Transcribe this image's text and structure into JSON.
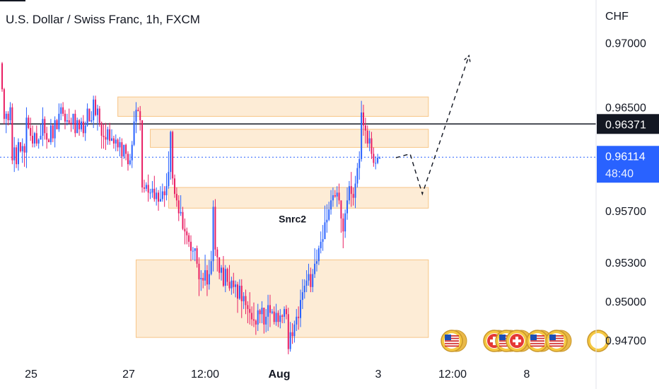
{
  "header": {
    "title": "U.S. Dollar / Swiss Franc, 1h, FXCM"
  },
  "chart_data": {
    "type": "candlestick",
    "currency": "CHF",
    "y_ticks": [
      "0.97000",
      "0.96500",
      "0.95700",
      "0.95300",
      "0.95000",
      "0.94700"
    ],
    "y_tick_values": [
      0.97,
      0.965,
      0.957,
      0.953,
      0.95,
      0.947
    ],
    "x_ticks": [
      "25",
      "27",
      "12:00",
      "Aug",
      "3",
      "12:00",
      "8"
    ],
    "ylim": [
      0.9454,
      0.9733
    ],
    "candle_count": 210,
    "candles": [
      [
        0.9684,
        0.9664,
        0.9685,
        0.9662
      ],
      [
        0.9664,
        0.9641,
        0.9665,
        0.9637
      ],
      [
        0.9641,
        0.9645,
        0.9647,
        0.963
      ],
      [
        0.9645,
        0.964,
        0.9647,
        0.9636
      ],
      [
        0.964,
        0.965,
        0.9654,
        0.9637
      ],
      [
        0.965,
        0.9609,
        0.9653,
        0.9606
      ],
      [
        0.9609,
        0.9619,
        0.9627,
        0.96
      ],
      [
        0.9619,
        0.9606,
        0.9621,
        0.9603
      ],
      [
        0.9606,
        0.9623,
        0.9626,
        0.9601
      ],
      [
        0.9623,
        0.9616,
        0.9623,
        0.9615
      ],
      [
        0.9616,
        0.962,
        0.9626,
        0.9607
      ],
      [
        0.962,
        0.9615,
        0.9622,
        0.9604
      ],
      [
        0.9615,
        0.9642,
        0.965,
        0.9603
      ],
      [
        0.9642,
        0.9634,
        0.9644,
        0.9633
      ],
      [
        0.9634,
        0.9628,
        0.9642,
        0.9624
      ],
      [
        0.9628,
        0.9622,
        0.9636,
        0.9619
      ],
      [
        0.9622,
        0.963,
        0.9631,
        0.9619
      ],
      [
        0.963,
        0.9622,
        0.9636,
        0.962
      ],
      [
        0.9622,
        0.9625,
        0.9626,
        0.9618
      ],
      [
        0.9625,
        0.9628,
        0.9637,
        0.9625
      ],
      [
        0.9628,
        0.9641,
        0.965,
        0.962
      ],
      [
        0.9641,
        0.963,
        0.9643,
        0.9625
      ],
      [
        0.963,
        0.9625,
        0.9635,
        0.9618
      ],
      [
        0.9625,
        0.9623,
        0.9626,
        0.9623
      ],
      [
        0.9623,
        0.9636,
        0.9641,
        0.9621
      ],
      [
        0.9636,
        0.9626,
        0.9637,
        0.9623
      ],
      [
        0.9626,
        0.964,
        0.9643,
        0.9619
      ],
      [
        0.964,
        0.9633,
        0.9641,
        0.9633
      ],
      [
        0.9633,
        0.9645,
        0.9653,
        0.9631
      ],
      [
        0.9645,
        0.965,
        0.9653,
        0.964
      ],
      [
        0.965,
        0.9645,
        0.9654,
        0.9643
      ],
      [
        0.9645,
        0.9639,
        0.9648,
        0.9633
      ],
      [
        0.9639,
        0.964,
        0.9645,
        0.9636
      ],
      [
        0.964,
        0.9638,
        0.9649,
        0.9637
      ],
      [
        0.9638,
        0.9637,
        0.9642,
        0.9631
      ],
      [
        0.9637,
        0.9645,
        0.9645,
        0.9633
      ],
      [
        0.9645,
        0.963,
        0.9648,
        0.9627
      ],
      [
        0.963,
        0.964,
        0.9642,
        0.963
      ],
      [
        0.964,
        0.9633,
        0.9641,
        0.9628
      ],
      [
        0.9633,
        0.9639,
        0.9642,
        0.9631
      ],
      [
        0.9639,
        0.963,
        0.9644,
        0.9627
      ],
      [
        0.963,
        0.9636,
        0.9639,
        0.9624
      ],
      [
        0.9636,
        0.9649,
        0.9653,
        0.9635
      ],
      [
        0.9649,
        0.9639,
        0.9649,
        0.9639
      ],
      [
        0.9639,
        0.964,
        0.9647,
        0.9638
      ],
      [
        0.964,
        0.9656,
        0.9659,
        0.9634
      ],
      [
        0.9656,
        0.9644,
        0.9659,
        0.9643
      ],
      [
        0.9644,
        0.9649,
        0.9652,
        0.9632
      ],
      [
        0.9649,
        0.9638,
        0.9651,
        0.9635
      ],
      [
        0.9638,
        0.9628,
        0.9639,
        0.9618
      ],
      [
        0.9628,
        0.9627,
        0.9637,
        0.9618
      ],
      [
        0.9627,
        0.9625,
        0.9638,
        0.9617
      ],
      [
        0.9625,
        0.9633,
        0.9635,
        0.9621
      ],
      [
        0.9633,
        0.9624,
        0.9638,
        0.9621
      ],
      [
        0.9624,
        0.9626,
        0.9633,
        0.9625
      ],
      [
        0.9626,
        0.9622,
        0.9628,
        0.9618
      ],
      [
        0.9622,
        0.9625,
        0.9629,
        0.9616
      ],
      [
        0.9625,
        0.9619,
        0.9626,
        0.9616
      ],
      [
        0.9619,
        0.9623,
        0.9627,
        0.9612
      ],
      [
        0.9623,
        0.9612,
        0.9626,
        0.9604
      ],
      [
        0.9612,
        0.9621,
        0.9621,
        0.961
      ],
      [
        0.9621,
        0.9614,
        0.9622,
        0.9609
      ],
      [
        0.9614,
        0.9606,
        0.9616,
        0.9601
      ],
      [
        0.9606,
        0.9609,
        0.9614,
        0.9605
      ],
      [
        0.9609,
        0.9621,
        0.9624,
        0.9603
      ],
      [
        0.9621,
        0.9639,
        0.9647,
        0.962
      ],
      [
        0.9639,
        0.9648,
        0.9654,
        0.963
      ],
      [
        0.9648,
        0.9647,
        0.965,
        0.9647
      ],
      [
        0.9647,
        0.964,
        0.9651,
        0.9632
      ],
      [
        0.964,
        0.9588,
        0.964,
        0.9584
      ],
      [
        0.9588,
        0.9587,
        0.9594,
        0.9584
      ],
      [
        0.9587,
        0.959,
        0.9592,
        0.9585
      ],
      [
        0.959,
        0.9584,
        0.9598,
        0.9577
      ],
      [
        0.9584,
        0.9584,
        0.9587,
        0.9579
      ],
      [
        0.9584,
        0.9587,
        0.9593,
        0.958
      ],
      [
        0.9587,
        0.9579,
        0.9597,
        0.9577
      ],
      [
        0.9579,
        0.9584,
        0.9588,
        0.9574
      ],
      [
        0.9584,
        0.9577,
        0.9586,
        0.957
      ],
      [
        0.9577,
        0.9579,
        0.9589,
        0.9578
      ],
      [
        0.9579,
        0.9585,
        0.9591,
        0.9577
      ],
      [
        0.9585,
        0.9582,
        0.9589,
        0.9573
      ],
      [
        0.9582,
        0.9589,
        0.9599,
        0.9578
      ],
      [
        0.9589,
        0.96,
        0.9616,
        0.9587
      ],
      [
        0.96,
        0.9631,
        0.9632,
        0.9594
      ],
      [
        0.9631,
        0.9595,
        0.9632,
        0.959
      ],
      [
        0.9595,
        0.9583,
        0.9598,
        0.958
      ],
      [
        0.9583,
        0.9578,
        0.9588,
        0.9573
      ],
      [
        0.9578,
        0.9568,
        0.9582,
        0.9562
      ],
      [
        0.9568,
        0.9569,
        0.9582,
        0.9566
      ],
      [
        0.9569,
        0.9556,
        0.9573,
        0.9555
      ],
      [
        0.9556,
        0.9554,
        0.9564,
        0.9544
      ],
      [
        0.9554,
        0.9551,
        0.9557,
        0.9544
      ],
      [
        0.9551,
        0.9546,
        0.9553,
        0.9542
      ],
      [
        0.9546,
        0.9539,
        0.9551,
        0.9531
      ],
      [
        0.9539,
        0.9539,
        0.9542,
        0.9532
      ],
      [
        0.9539,
        0.9541,
        0.9541,
        0.9531
      ],
      [
        0.9541,
        0.9529,
        0.9543,
        0.9526
      ],
      [
        0.9529,
        0.9517,
        0.9534,
        0.9504
      ],
      [
        0.9517,
        0.9518,
        0.9524,
        0.9508
      ],
      [
        0.9518,
        0.9516,
        0.9522,
        0.951
      ],
      [
        0.9516,
        0.9524,
        0.9536,
        0.9512
      ],
      [
        0.9524,
        0.9513,
        0.9528,
        0.9504
      ],
      [
        0.9513,
        0.9521,
        0.9532,
        0.9509
      ],
      [
        0.9521,
        0.9531,
        0.9539,
        0.952
      ],
      [
        0.9531,
        0.9573,
        0.9578,
        0.9523
      ],
      [
        0.9573,
        0.954,
        0.9579,
        0.9535
      ],
      [
        0.954,
        0.9534,
        0.9542,
        0.9523
      ],
      [
        0.9534,
        0.9522,
        0.9534,
        0.9517
      ],
      [
        0.9522,
        0.9526,
        0.9528,
        0.9516
      ],
      [
        0.9526,
        0.9512,
        0.9535,
        0.9511
      ],
      [
        0.9512,
        0.9525,
        0.9528,
        0.9507
      ],
      [
        0.9525,
        0.9515,
        0.9526,
        0.9512
      ],
      [
        0.9515,
        0.951,
        0.9528,
        0.9508
      ],
      [
        0.951,
        0.9516,
        0.9519,
        0.9505
      ],
      [
        0.9516,
        0.9511,
        0.9522,
        0.9506
      ],
      [
        0.9511,
        0.9513,
        0.9516,
        0.9503
      ],
      [
        0.9513,
        0.9502,
        0.9515,
        0.9491
      ],
      [
        0.9502,
        0.9512,
        0.9517,
        0.9501
      ],
      [
        0.9512,
        0.95,
        0.9517,
        0.9487
      ],
      [
        0.95,
        0.9504,
        0.9507,
        0.9494
      ],
      [
        0.9504,
        0.9497,
        0.9509,
        0.949
      ],
      [
        0.9497,
        0.9494,
        0.95,
        0.9483
      ],
      [
        0.9494,
        0.9491,
        0.9507,
        0.9482
      ],
      [
        0.9491,
        0.9486,
        0.9496,
        0.9481
      ],
      [
        0.9486,
        0.9485,
        0.9499,
        0.948
      ],
      [
        0.9485,
        0.9482,
        0.9486,
        0.9474
      ],
      [
        0.9482,
        0.9493,
        0.9498,
        0.9477
      ],
      [
        0.9493,
        0.949,
        0.9494,
        0.9483
      ],
      [
        0.949,
        0.9495,
        0.95,
        0.9483
      ],
      [
        0.9495,
        0.9482,
        0.9495,
        0.9475
      ],
      [
        0.9482,
        0.9488,
        0.9494,
        0.9476
      ],
      [
        0.9488,
        0.9497,
        0.9505,
        0.9477
      ],
      [
        0.9497,
        0.9491,
        0.9505,
        0.948
      ],
      [
        0.9491,
        0.9492,
        0.9494,
        0.949
      ],
      [
        0.9492,
        0.9484,
        0.9496,
        0.9482
      ],
      [
        0.9484,
        0.9491,
        0.9498,
        0.9481
      ],
      [
        0.9491,
        0.9484,
        0.9493,
        0.948
      ],
      [
        0.9484,
        0.9489,
        0.9494,
        0.9479
      ],
      [
        0.9489,
        0.9488,
        0.949,
        0.9483
      ],
      [
        0.9488,
        0.9494,
        0.9496,
        0.9483
      ],
      [
        0.9494,
        0.949,
        0.9497,
        0.9486
      ],
      [
        0.949,
        0.9463,
        0.9495,
        0.9459
      ],
      [
        0.9463,
        0.9476,
        0.9484,
        0.9461
      ],
      [
        0.9476,
        0.9473,
        0.9483,
        0.9467
      ],
      [
        0.9473,
        0.9482,
        0.9485,
        0.9468
      ],
      [
        0.9482,
        0.9488,
        0.9494,
        0.9477
      ],
      [
        0.9488,
        0.9487,
        0.9496,
        0.9478
      ],
      [
        0.9487,
        0.9501,
        0.9509,
        0.948
      ],
      [
        0.9501,
        0.9507,
        0.9517,
        0.9494
      ],
      [
        0.9507,
        0.9512,
        0.9517,
        0.9502
      ],
      [
        0.9512,
        0.9516,
        0.9524,
        0.9507
      ],
      [
        0.9516,
        0.9521,
        0.9529,
        0.9512
      ],
      [
        0.9521,
        0.9511,
        0.9526,
        0.9507
      ],
      [
        0.9511,
        0.9521,
        0.9525,
        0.9507
      ],
      [
        0.9521,
        0.9529,
        0.9541,
        0.9518
      ],
      [
        0.9529,
        0.9531,
        0.954,
        0.9523
      ],
      [
        0.9531,
        0.9541,
        0.9543,
        0.9528
      ],
      [
        0.9541,
        0.9546,
        0.9554,
        0.9537
      ],
      [
        0.9546,
        0.9548,
        0.9559,
        0.9539
      ],
      [
        0.9548,
        0.9561,
        0.9574,
        0.9556
      ],
      [
        0.9561,
        0.9563,
        0.9575,
        0.9553
      ],
      [
        0.9563,
        0.9571,
        0.9577,
        0.9562
      ],
      [
        0.9571,
        0.9578,
        0.9586,
        0.9567
      ],
      [
        0.9578,
        0.9582,
        0.9588,
        0.9573
      ],
      [
        0.9582,
        0.9581,
        0.9586,
        0.958
      ],
      [
        0.9581,
        0.9584,
        0.9589,
        0.9573
      ],
      [
        0.9584,
        0.9578,
        0.9591,
        0.9575
      ],
      [
        0.9578,
        0.9564,
        0.9578,
        0.9553
      ],
      [
        0.9564,
        0.9554,
        0.9568,
        0.9541
      ],
      [
        0.9554,
        0.9568,
        0.9571,
        0.9549
      ],
      [
        0.9568,
        0.9578,
        0.9588,
        0.9563
      ],
      [
        0.9578,
        0.9589,
        0.9593,
        0.9575
      ],
      [
        0.9589,
        0.9583,
        0.96,
        0.9573
      ],
      [
        0.9583,
        0.958,
        0.9588,
        0.9574
      ],
      [
        0.958,
        0.9591,
        0.9597,
        0.9572
      ],
      [
        0.9591,
        0.9603,
        0.9607,
        0.9588
      ],
      [
        0.9603,
        0.961,
        0.9616,
        0.9594
      ],
      [
        0.961,
        0.9646,
        0.9655,
        0.9608
      ],
      [
        0.9646,
        0.9636,
        0.9652,
        0.9628
      ],
      [
        0.9636,
        0.9632,
        0.9642,
        0.9622
      ],
      [
        0.9632,
        0.9622,
        0.9636,
        0.9619
      ],
      [
        0.9622,
        0.9626,
        0.9632,
        0.9616
      ],
      [
        0.9626,
        0.9614,
        0.9631,
        0.961
      ],
      [
        0.9614,
        0.9607,
        0.9619,
        0.9604
      ],
      [
        0.9607,
        0.9607,
        0.9612,
        0.9602
      ],
      [
        0.9607,
        0.9611,
        0.9614,
        0.9606
      ],
      [
        0.9611,
        0.9611,
        0.9612,
        0.961
      ]
    ],
    "zones": [
      {
        "id": "zone-1",
        "top": 0.9658,
        "bottom": 0.9643,
        "start_index": 57,
        "end_index": 210,
        "label": ""
      },
      {
        "id": "zone-2",
        "top": 0.9633,
        "bottom": 0.9619,
        "start_index": 73,
        "end_index": 210,
        "label": ""
      },
      {
        "id": "zone-3",
        "top": 0.9588,
        "bottom": 0.9572,
        "start_index": 82,
        "end_index": 210,
        "label": "Snrc2"
      },
      {
        "id": "zone-4",
        "top": 0.9532,
        "bottom": 0.9472,
        "start_index": 66,
        "end_index": 210,
        "label": ""
      }
    ],
    "forecast": {
      "style": "dashed",
      "points": [
        [
          0.9611,
          194
        ],
        [
          0.9614,
          201
        ],
        [
          0.9583,
          207
        ],
        [
          0.969,
          230
        ]
      ]
    },
    "horizontal_line": {
      "value": 0.96371,
      "label": "0.96371"
    },
    "last_price": {
      "value": 0.96114,
      "label": "0.96114",
      "countdown": "48:40"
    },
    "events": [
      {
        "icon": "us-flag-icon",
        "slot": 0
      },
      {
        "icon": "ch-flag-icon",
        "slot": 1
      },
      {
        "icon": "us-flag-icon",
        "slot": 2
      },
      {
        "icon": "ch-flag-icon",
        "slot": 3
      },
      {
        "icon": "us-flag-icon",
        "slot": 4
      },
      {
        "icon": "us-flag-icon",
        "slot": 5
      }
    ],
    "colors": {
      "up": "#2962ff",
      "down": "#e91e63",
      "zone_fill": "#fde9cf",
      "zone_border": "#f7c587",
      "horizontal_line": "#131722",
      "last_price_bg": "#2962ff",
      "last_price_dotted": "#2962ff"
    }
  }
}
